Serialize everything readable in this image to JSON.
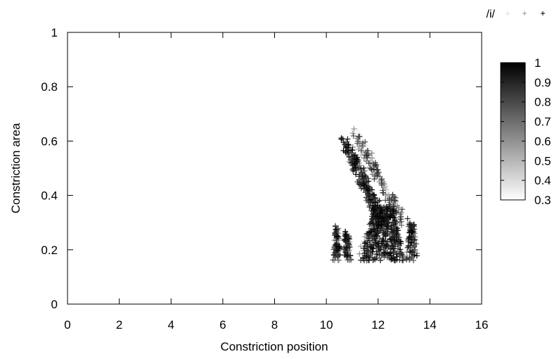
{
  "chart_data": {
    "type": "scatter",
    "title": "",
    "xlabel": "Constriction position",
    "ylabel": "Constriction area",
    "xlim": [
      0,
      16
    ],
    "ylim": [
      0,
      1
    ],
    "x_ticks": [
      "0",
      "2",
      "4",
      "6",
      "8",
      "10",
      "12",
      "14",
      "16"
    ],
    "y_ticks": [
      "0",
      "0.2",
      "0.4",
      "0.6",
      "0.8",
      "1"
    ],
    "grid": false,
    "marker": "+",
    "legend": {
      "label": "/i/",
      "position": "top-right"
    },
    "colorbar": {
      "min": 0.3,
      "max": 1,
      "ticks": [
        "1",
        "0.9",
        "0.8",
        "0.7",
        "0.6",
        "0.5",
        "0.4",
        "0.3"
      ],
      "scale": "white-to-black"
    },
    "clusters": [
      {
        "x_center": 10.4,
        "x_spread": 0.15,
        "y_min": 0.16,
        "y_max": 0.29,
        "value_min": 0.55,
        "value_max": 1.0,
        "count": 70
      },
      {
        "x_center": 10.8,
        "x_spread": 0.18,
        "y_min": 0.16,
        "y_max": 0.27,
        "value_min": 0.5,
        "value_max": 1.0,
        "count": 70
      },
      {
        "x_from": 10.7,
        "x_to": 12.2,
        "y_from": 0.6,
        "y_to": 0.3,
        "band_width": 0.35,
        "value_min": 0.6,
        "value_max": 1.0,
        "count": 260
      },
      {
        "x_from": 11.1,
        "x_to": 13.0,
        "y_from": 0.63,
        "y_to": 0.3,
        "band_width": 0.3,
        "value_min": 0.3,
        "value_max": 0.9,
        "count": 180
      },
      {
        "x_center": 12.2,
        "x_spread": 0.9,
        "y_min": 0.16,
        "y_max": 0.36,
        "value_min": 0.75,
        "value_max": 1.0,
        "count": 420
      },
      {
        "x_center": 13.3,
        "x_spread": 0.25,
        "y_min": 0.16,
        "y_max": 0.3,
        "value_min": 0.6,
        "value_max": 1.0,
        "count": 90
      },
      {
        "x_center": 11.7,
        "x_spread": 0.5,
        "y_min": 0.17,
        "y_max": 0.28,
        "value_min": 0.3,
        "value_max": 0.7,
        "count": 60
      }
    ]
  }
}
